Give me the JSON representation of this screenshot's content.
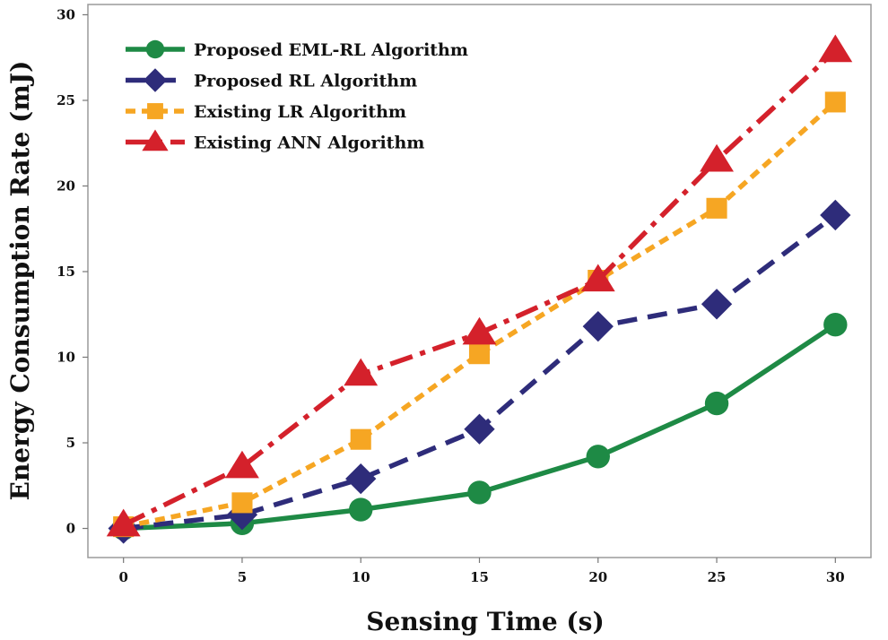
{
  "chart_data": {
    "type": "line",
    "title": "",
    "xlabel": "Sensing Time (s)",
    "ylabel": "Energy Consumption Rate (mJ)",
    "x": [
      0,
      5,
      10,
      15,
      20,
      25,
      30
    ],
    "x_ticks": [
      "0",
      "5",
      "10",
      "15",
      "20",
      "25",
      "30"
    ],
    "y_ticks": [
      "0",
      "5",
      "10",
      "15",
      "20",
      "25",
      "30"
    ],
    "xlim": [
      -1.5,
      31.5
    ],
    "ylim": [
      -1.7,
      30.6
    ],
    "grid": false,
    "legend_position": "top-left",
    "series": [
      {
        "name": "Proposed EML-RL Algorithm",
        "values": [
          0,
          0.3,
          1.1,
          2.1,
          4.2,
          7.3,
          11.9
        ],
        "color": "#1e8a45",
        "marker": "circle",
        "dash": "solid"
      },
      {
        "name": "Proposed RL Algorithm",
        "values": [
          0,
          0.8,
          2.9,
          5.8,
          11.8,
          13.1,
          18.3
        ],
        "color": "#2e2c7a",
        "marker": "diamond",
        "dash": "dashed"
      },
      {
        "name": "Existing LR Algorithm",
        "values": [
          0.1,
          1.5,
          5.2,
          10.2,
          14.5,
          18.7,
          24.9
        ],
        "color": "#f6a623",
        "marker": "square",
        "dash": "dotted"
      },
      {
        "name": "Existing ANN Algorithm",
        "values": [
          0.2,
          3.6,
          9.0,
          11.4,
          14.5,
          21.5,
          27.9
        ],
        "color": "#d4212b",
        "marker": "triangle",
        "dash": "dashdot"
      }
    ]
  }
}
